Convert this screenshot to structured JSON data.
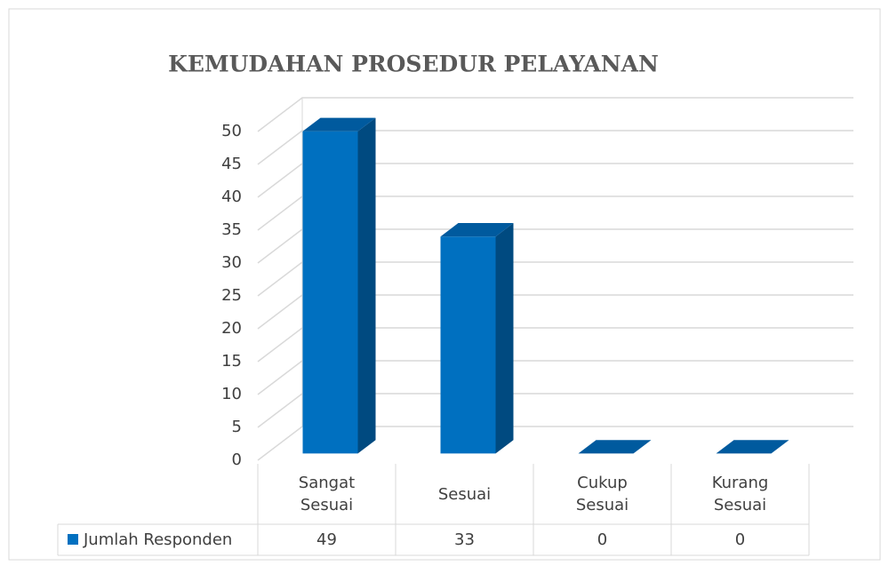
{
  "chart_data": {
    "type": "bar3d",
    "title": "KEMUDAHAN PROSEDUR PELAYANAN",
    "categories": [
      "Sangat Sesuai",
      "Sesuai",
      "Cukup Sesuai",
      "Kurang Sesuai"
    ],
    "series": [
      {
        "name": "Jumlah Responden",
        "color": "#0070c0",
        "values": [
          49,
          33,
          0,
          0
        ]
      }
    ],
    "ylim": [
      0,
      50
    ],
    "yticks": [
      0,
      5,
      10,
      15,
      20,
      25,
      30,
      35,
      40,
      45,
      50
    ],
    "grid": true,
    "data_table": true
  }
}
